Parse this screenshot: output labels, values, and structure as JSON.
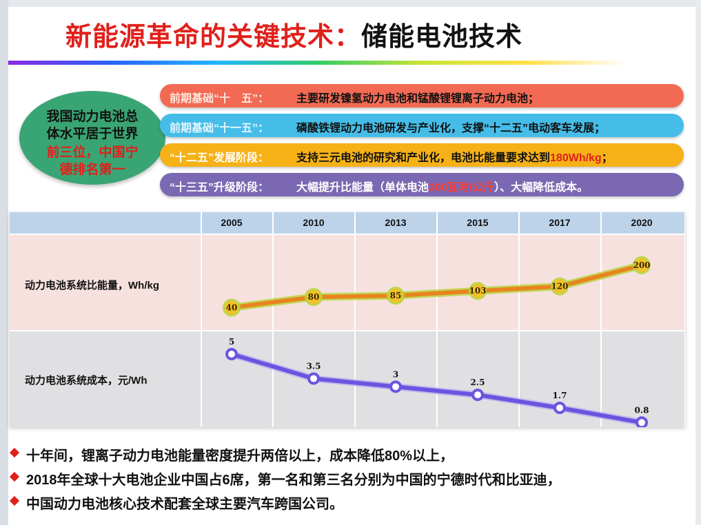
{
  "title": {
    "part1": "新能源革命的关键技术：",
    "part2": "储能电池技术"
  },
  "summary": {
    "line1": "我国动力电池总",
    "line2": "体水平居于世界",
    "line3": "前三位，中国宁",
    "line4": "德排名第一"
  },
  "stages": [
    {
      "label": "前期基础“十　五”：",
      "text": "主要研发镍氢动力电池和锰酸锂锂离子动力电池；"
    },
    {
      "label": "前期基础“十一五”：",
      "text": "磷酸铁锂动力电池研发与产业化，支撑“十二五”电动客车发展；"
    },
    {
      "label": "“十二五”发展阶段：",
      "text": "支持三元电池的研究和产业化，电池比能量要求达到",
      "highlight": "180Wh/kg",
      "suffix": "；"
    },
    {
      "label": "“十三五”升级阶段：",
      "text": "大幅提升比能量（单体电池",
      "highlight": "300瓦时/公斤",
      "suffix": "）、大幅降低成本。"
    }
  ],
  "colors": {
    "energy_line": "#e8841f",
    "energy_glow": "#b5d334",
    "energy_marker": "#f2c12b",
    "cost_line": "#6a55e0",
    "cost_marker": "#ffffff",
    "accent_red": "#e0201b"
  },
  "chart_data": {
    "type": "line",
    "x": [
      "2005",
      "2010",
      "2013",
      "2015",
      "2017",
      "2020"
    ],
    "series": [
      {
        "name": "动力电池系统比能量，Wh/kg",
        "values": [
          40,
          80,
          85,
          103,
          120,
          200
        ]
      },
      {
        "name": "动力电池系统成本，元/Wh",
        "values": [
          5,
          3.5,
          3,
          2.5,
          1.7,
          0.8
        ]
      }
    ],
    "legend": "row-labels-left",
    "grid": true
  },
  "bullets": [
    "十年间，锂离子动力电池能量密度提升两倍以上，成本降低80%以上，",
    "2018年全球十大电池企业中国占6席，第一名和第三名分别为中国的宁德时代和比亚迪，",
    "中国动力电池核心技术配套全球主要汽车跨国公司。"
  ]
}
